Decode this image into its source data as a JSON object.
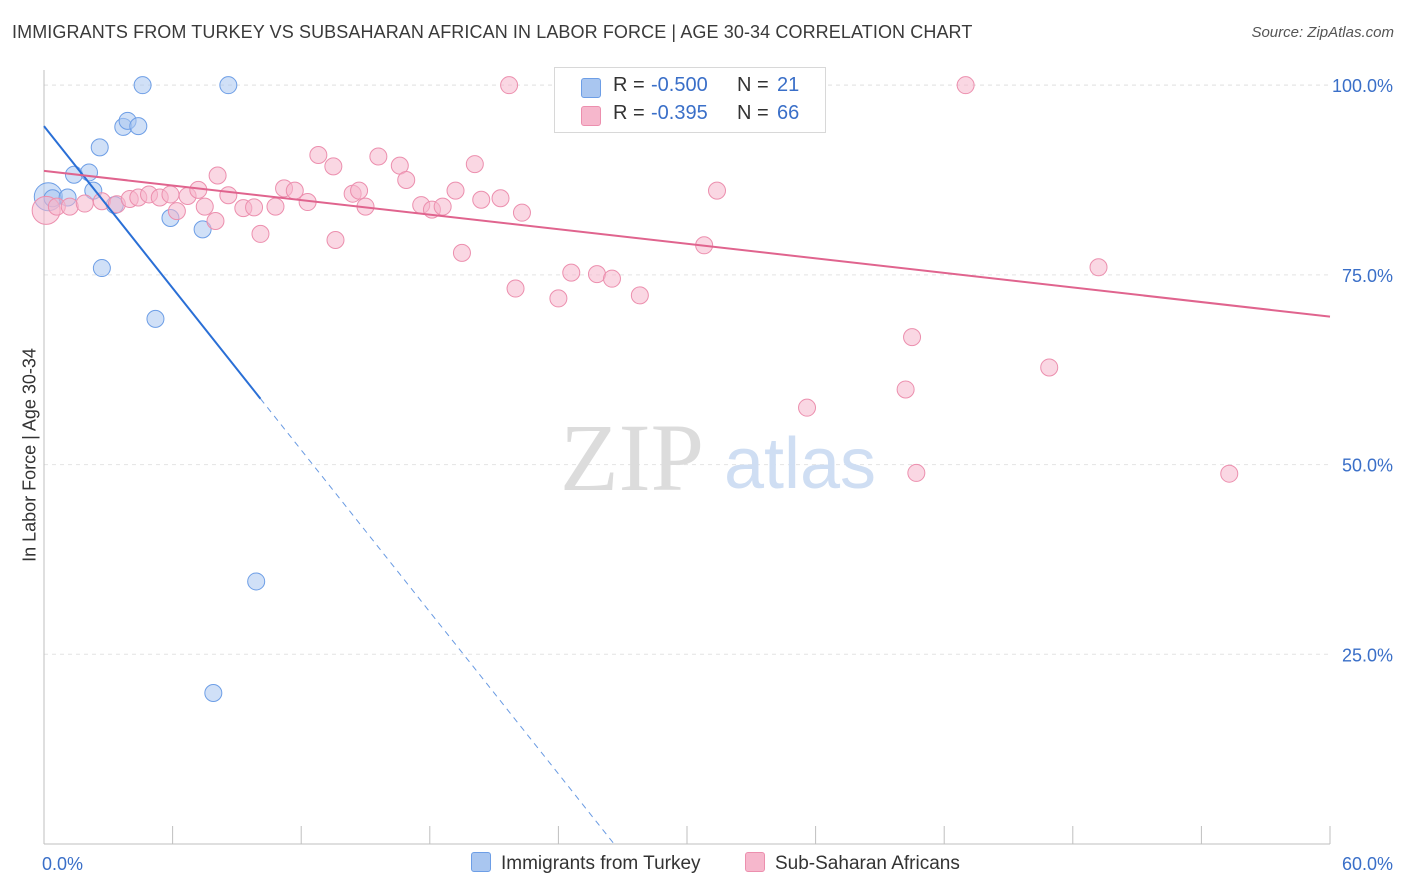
{
  "title": "IMMIGRANTS FROM TURKEY VS SUBSAHARAN AFRICAN IN LABOR FORCE | AGE 30-34 CORRELATION CHART",
  "source": "Source: ZipAtlas.com",
  "watermark": {
    "zip": "ZIP",
    "atlas": "atlas"
  },
  "legend": {
    "rows": [
      {
        "r_label": "R =",
        "r_value": "-0.500",
        "n_label": "N =",
        "n_value": "21",
        "color": "#a9c6f0"
      },
      {
        "r_label": "R =",
        "r_value": "-0.395",
        "n_label": "N =",
        "n_value": "66",
        "color": "#f6b7cc"
      }
    ]
  },
  "chart_data": {
    "type": "scatter",
    "title": "IMMIGRANTS FROM TURKEY VS SUBSAHARAN AFRICAN IN LABOR FORCE | AGE 30-34 CORRELATION CHART",
    "xlabel": "",
    "ylabel": "In Labor Force | Age 30-34",
    "xlim": [
      0,
      60
    ],
    "ylim": [
      0,
      102
    ],
    "x_tick_labels": [
      "0.0%",
      "60.0%"
    ],
    "y_tick_labels": [
      "100.0%",
      "75.0%",
      "50.0%",
      "25.0%"
    ],
    "y_ticks": [
      100,
      75,
      50,
      25
    ],
    "grid": true,
    "legend_position": "bottom",
    "series": [
      {
        "name": "Immigrants from Turkey",
        "color": "#a9c6f0",
        "stroke": "#6d9ee6",
        "trend_color": "#2a6fd6",
        "trend": {
          "x_start": 0,
          "y_start": 94.6,
          "x_solid_end": 10.1,
          "x_end": 26.6,
          "y_end": 0
        },
        "points": [
          [
            0.2,
            85.3
          ],
          [
            0.4,
            85.1
          ],
          [
            1.1,
            85.2
          ],
          [
            1.4,
            88.2
          ],
          [
            2.1,
            88.5
          ],
          [
            2.3,
            86.1
          ],
          [
            3.3,
            84.2
          ],
          [
            2.6,
            91.8
          ],
          [
            3.7,
            94.5
          ],
          [
            3.9,
            95.3
          ],
          [
            4.4,
            94.6
          ],
          [
            4.6,
            100.0
          ],
          [
            8.6,
            100.0
          ],
          [
            5.9,
            82.5
          ],
          [
            7.4,
            81.0
          ],
          [
            2.7,
            75.9
          ],
          [
            5.2,
            69.2
          ],
          [
            9.9,
            34.6
          ],
          [
            7.9,
            19.9
          ]
        ]
      },
      {
        "name": "Sub-Saharan Africans",
        "color": "#f6b7cc",
        "stroke": "#ec8fae",
        "trend_color": "#e0648e",
        "trend": {
          "x_start": 0,
          "y_start": 88.7,
          "x_end": 60,
          "y_end": 69.5
        },
        "points": [
          [
            0.1,
            83.5
          ],
          [
            0.6,
            84.0
          ],
          [
            1.2,
            84.0
          ],
          [
            1.9,
            84.4
          ],
          [
            2.7,
            84.7
          ],
          [
            3.4,
            84.3
          ],
          [
            4.0,
            85.0
          ],
          [
            4.4,
            85.2
          ],
          [
            4.9,
            85.6
          ],
          [
            5.4,
            85.2
          ],
          [
            5.9,
            85.6
          ],
          [
            6.2,
            83.4
          ],
          [
            6.7,
            85.4
          ],
          [
            7.2,
            86.2
          ],
          [
            7.5,
            84.0
          ],
          [
            8.0,
            82.1
          ],
          [
            8.1,
            88.1
          ],
          [
            8.6,
            85.5
          ],
          [
            9.3,
            83.8
          ],
          [
            9.8,
            83.9
          ],
          [
            10.1,
            80.4
          ],
          [
            10.8,
            84.0
          ],
          [
            11.2,
            86.4
          ],
          [
            11.7,
            86.1
          ],
          [
            12.3,
            84.6
          ],
          [
            12.8,
            90.8
          ],
          [
            13.5,
            89.3
          ],
          [
            13.6,
            79.6
          ],
          [
            14.4,
            85.7
          ],
          [
            14.7,
            86.1
          ],
          [
            15.6,
            90.6
          ],
          [
            15.0,
            84.0
          ],
          [
            16.6,
            89.4
          ],
          [
            16.9,
            87.5
          ],
          [
            17.6,
            84.2
          ],
          [
            18.1,
            83.6
          ],
          [
            18.6,
            84.0
          ],
          [
            19.2,
            86.1
          ],
          [
            19.5,
            77.9
          ],
          [
            20.1,
            89.6
          ],
          [
            20.4,
            84.9
          ],
          [
            21.3,
            85.1
          ],
          [
            22.3,
            83.2
          ],
          [
            22.0,
            73.2
          ],
          [
            21.7,
            100.0
          ],
          [
            24.0,
            71.9
          ],
          [
            24.6,
            75.3
          ],
          [
            25.8,
            75.1
          ],
          [
            26.5,
            74.5
          ],
          [
            27.8,
            72.3
          ],
          [
            28.2,
            100.0
          ],
          [
            30.8,
            78.9
          ],
          [
            31.4,
            86.1
          ],
          [
            34.9,
            100.0
          ],
          [
            35.6,
            57.5
          ],
          [
            40.5,
            66.8
          ],
          [
            40.2,
            59.9
          ],
          [
            40.7,
            48.9
          ],
          [
            43.0,
            100.0
          ],
          [
            46.9,
            62.8
          ],
          [
            49.2,
            76.0
          ],
          [
            55.3,
            48.8
          ]
        ]
      }
    ]
  }
}
